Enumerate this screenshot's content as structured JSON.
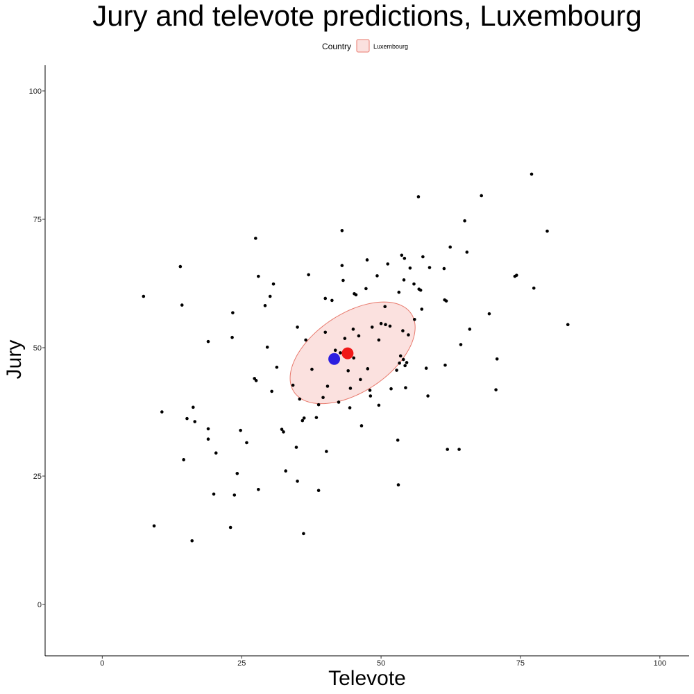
{
  "chart_data": {
    "type": "scatter",
    "title": "Jury and televote predictions, Luxembourg",
    "xlabel": "Televote",
    "ylabel": "Jury",
    "xlim": [
      -10.25,
      105.25
    ],
    "ylim": [
      -10,
      105
    ],
    "x_ticks": [
      0,
      25,
      50,
      75,
      100
    ],
    "y_ticks": [
      0,
      25,
      50,
      75,
      100
    ],
    "x_tick_labels": [
      "0",
      "25",
      "50",
      "75",
      "100"
    ],
    "y_tick_labels": [
      "0",
      "25",
      "50",
      "75",
      "100"
    ],
    "grid": false,
    "legend": {
      "title": "Country",
      "entries": [
        "Luxembourg"
      ],
      "placement": "top-center"
    },
    "colors": {
      "points": "#000000",
      "blue_marker": "#2b1ee0",
      "red_marker": "#f01818",
      "ellipse_fill": "#fbe1df",
      "ellipse_stroke": "#e8796c"
    },
    "highlight_points": [
      {
        "color": "blue",
        "x": 41.6,
        "y": 47.8
      },
      {
        "color": "red",
        "x": 44.0,
        "y": 48.9
      }
    ],
    "ellipse": {
      "group": "Luxembourg",
      "center": [
        44.9,
        49.0
      ],
      "semi_axes": [
        13.0,
        7.4
      ],
      "rotation_deg": 38
    },
    "points": [
      [
        7.4,
        60.0
      ],
      [
        9.3,
        15.3
      ],
      [
        10.7,
        37.5
      ],
      [
        14.0,
        65.8
      ],
      [
        14.3,
        58.3
      ],
      [
        14.6,
        28.2
      ],
      [
        15.2,
        36.2
      ],
      [
        16.1,
        12.4
      ],
      [
        16.3,
        38.4
      ],
      [
        16.6,
        35.6
      ],
      [
        19.0,
        34.2
      ],
      [
        19.0,
        51.2
      ],
      [
        19.0,
        32.2
      ],
      [
        20.0,
        21.5
      ],
      [
        20.4,
        29.5
      ],
      [
        23.0,
        15.0
      ],
      [
        23.3,
        52.0
      ],
      [
        23.4,
        56.8
      ],
      [
        23.7,
        21.3
      ],
      [
        24.2,
        25.5
      ],
      [
        24.8,
        33.9
      ],
      [
        25.9,
        31.5
      ],
      [
        27.3,
        44.0
      ],
      [
        27.5,
        71.3
      ],
      [
        27.6,
        43.6
      ],
      [
        28.0,
        63.9
      ],
      [
        28.0,
        22.4
      ],
      [
        29.2,
        58.2
      ],
      [
        29.6,
        50.1
      ],
      [
        30.1,
        60.0
      ],
      [
        30.4,
        41.5
      ],
      [
        30.7,
        62.4
      ],
      [
        31.3,
        46.2
      ],
      [
        32.2,
        34.1
      ],
      [
        32.5,
        33.6
      ],
      [
        32.9,
        26.0
      ],
      [
        34.2,
        42.7
      ],
      [
        34.8,
        30.6
      ],
      [
        35.0,
        54.0
      ],
      [
        35.0,
        24.0
      ],
      [
        35.4,
        40.0
      ],
      [
        35.9,
        35.8
      ],
      [
        36.1,
        13.8
      ],
      [
        36.2,
        36.3
      ],
      [
        36.5,
        51.5
      ],
      [
        37.0,
        64.2
      ],
      [
        37.6,
        45.8
      ],
      [
        38.4,
        36.4
      ],
      [
        38.8,
        22.2
      ],
      [
        38.8,
        38.9
      ],
      [
        39.6,
        40.3
      ],
      [
        40.0,
        53.0
      ],
      [
        40.0,
        59.6
      ],
      [
        40.2,
        29.8
      ],
      [
        40.4,
        42.5
      ],
      [
        41.2,
        59.2
      ],
      [
        41.8,
        49.5
      ],
      [
        42.4,
        39.4
      ],
      [
        42.7,
        49.0
      ],
      [
        43.0,
        72.8
      ],
      [
        43.0,
        66.0
      ],
      [
        43.2,
        63.1
      ],
      [
        43.5,
        51.8
      ],
      [
        44.1,
        45.5
      ],
      [
        44.4,
        38.3
      ],
      [
        44.5,
        42.1
      ],
      [
        45.0,
        53.6
      ],
      [
        45.1,
        48.0
      ],
      [
        45.2,
        60.5
      ],
      [
        45.5,
        60.3
      ],
      [
        46.0,
        52.3
      ],
      [
        46.3,
        43.8
      ],
      [
        46.5,
        34.8
      ],
      [
        47.3,
        61.5
      ],
      [
        47.5,
        67.1
      ],
      [
        47.6,
        45.9
      ],
      [
        48.0,
        41.7
      ],
      [
        48.1,
        40.6
      ],
      [
        48.4,
        54.0
      ],
      [
        49.3,
        64.0
      ],
      [
        49.6,
        38.8
      ],
      [
        49.6,
        51.5
      ],
      [
        50.0,
        54.7
      ],
      [
        50.7,
        58.0
      ],
      [
        50.8,
        54.5
      ],
      [
        51.2,
        66.3
      ],
      [
        51.6,
        54.2
      ],
      [
        51.8,
        42.0
      ],
      [
        52.8,
        45.6
      ],
      [
        53.0,
        32.0
      ],
      [
        53.1,
        23.3
      ],
      [
        53.2,
        60.8
      ],
      [
        53.3,
        47.0
      ],
      [
        53.5,
        48.4
      ],
      [
        53.7,
        68.0
      ],
      [
        53.9,
        53.3
      ],
      [
        54.0,
        47.7
      ],
      [
        54.1,
        63.2
      ],
      [
        54.2,
        67.4
      ],
      [
        54.3,
        46.5
      ],
      [
        54.4,
        42.2
      ],
      [
        54.6,
        47.1
      ],
      [
        54.9,
        52.5
      ],
      [
        55.2,
        65.5
      ],
      [
        55.9,
        62.4
      ],
      [
        56.0,
        55.5
      ],
      [
        56.7,
        79.4
      ],
      [
        56.8,
        61.4
      ],
      [
        57.1,
        61.2
      ],
      [
        57.3,
        57.5
      ],
      [
        57.5,
        67.7
      ],
      [
        58.1,
        46.0
      ],
      [
        58.4,
        40.6
      ],
      [
        58.7,
        65.6
      ],
      [
        61.3,
        65.4
      ],
      [
        61.4,
        59.3
      ],
      [
        61.5,
        46.6
      ],
      [
        61.7,
        59.1
      ],
      [
        61.9,
        30.2
      ],
      [
        62.4,
        69.6
      ],
      [
        64.0,
        30.2
      ],
      [
        64.3,
        50.6
      ],
      [
        65.0,
        74.7
      ],
      [
        65.4,
        68.6
      ],
      [
        65.9,
        53.6
      ],
      [
        68.0,
        79.6
      ],
      [
        69.4,
        56.6
      ],
      [
        70.6,
        41.8
      ],
      [
        70.8,
        47.8
      ],
      [
        74.0,
        63.9
      ],
      [
        74.3,
        64.1
      ],
      [
        77.0,
        83.8
      ],
      [
        77.4,
        61.6
      ],
      [
        79.8,
        72.7
      ],
      [
        83.5,
        54.5
      ]
    ]
  }
}
